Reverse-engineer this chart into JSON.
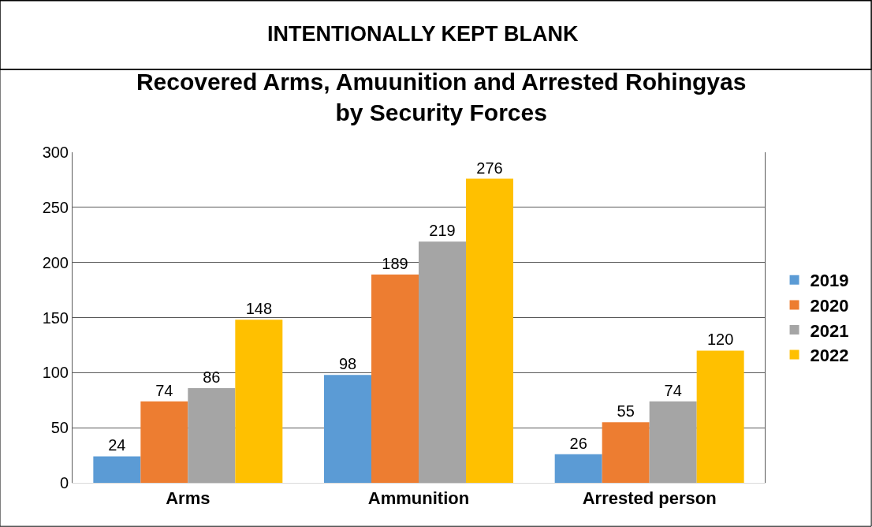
{
  "chart_data": {
    "type": "bar",
    "title": "Recovered Arms, Amuunition and Arrested Rohingyas\nby Security Forces",
    "annotations": [
      "INTENTIONALLY KEPT BLANK"
    ],
    "categories": [
      "Arms",
      "Ammunition",
      "Arrested person"
    ],
    "series": [
      {
        "name": "2019",
        "color": "#5b9bd5",
        "values": [
          24,
          98,
          26
        ]
      },
      {
        "name": "2020",
        "color": "#ed7d31",
        "values": [
          74,
          189,
          55
        ]
      },
      {
        "name": "2021",
        "color": "#a5a5a5",
        "values": [
          86,
          219,
          74
        ]
      },
      {
        "name": "2022",
        "color": "#ffc000",
        "values": [
          148,
          276,
          120
        ]
      }
    ],
    "ylim": [
      0,
      300
    ],
    "yticks": [
      0,
      50,
      100,
      150,
      200,
      250,
      300
    ],
    "grid": "y",
    "legend": "right",
    "data_labels": true
  }
}
